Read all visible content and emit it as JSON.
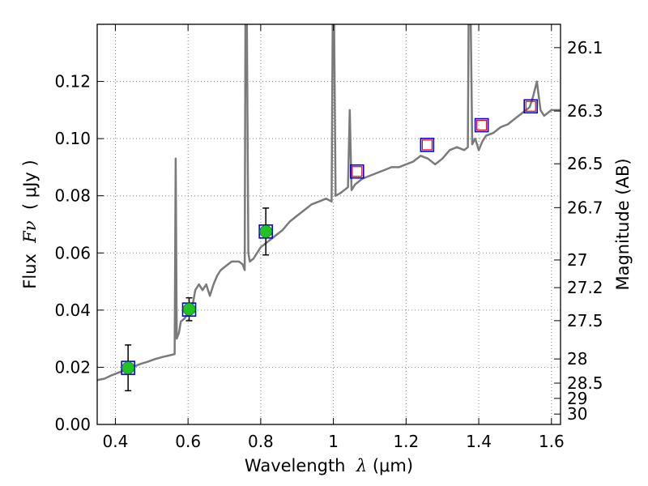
{
  "chart_data": {
    "type": "line",
    "title": "",
    "xlabel": {
      "prefix": "Wavelength  ",
      "symbol": "λ",
      "units": " (μm)"
    },
    "ylabel": {
      "prefix": "Flux  ",
      "symbol": "Fν",
      "units": "  ( μJy )"
    },
    "ylabel_right": "Magnitude (AB)",
    "xlim": [
      0.35,
      1.625
    ],
    "ylim": [
      0.0,
      0.14
    ],
    "grid": true,
    "grid_style": "dotted",
    "x_ticks": [
      {
        "v": 0.4,
        "label": "0.4"
      },
      {
        "v": 0.6,
        "label": "0.6"
      },
      {
        "v": 0.8,
        "label": "0.8"
      },
      {
        "v": 1.0,
        "label": "1"
      },
      {
        "v": 1.2,
        "label": "1.2"
      },
      {
        "v": 1.4,
        "label": "1.4"
      },
      {
        "v": 1.6,
        "label": "1.6"
      }
    ],
    "y_ticks": [
      {
        "v": 0.0,
        "label": "0.00"
      },
      {
        "v": 0.02,
        "label": "0.02"
      },
      {
        "v": 0.04,
        "label": "0.04"
      },
      {
        "v": 0.06,
        "label": "0.06"
      },
      {
        "v": 0.08,
        "label": "0.08"
      },
      {
        "v": 0.1,
        "label": "0.10"
      },
      {
        "v": 0.12,
        "label": "0.12"
      }
    ],
    "right_ticks": [
      {
        "mag": 26.1,
        "label": "26.1"
      },
      {
        "mag": 26.3,
        "label": "26.3"
      },
      {
        "mag": 26.5,
        "label": "26.5"
      },
      {
        "mag": 26.7,
        "label": "26.7"
      },
      {
        "mag": 27.0,
        "label": "27"
      },
      {
        "mag": 27.2,
        "label": "27.2"
      },
      {
        "mag": 27.5,
        "label": "27.5"
      },
      {
        "mag": 28.0,
        "label": "28"
      },
      {
        "mag": 28.5,
        "label": "28.5"
      },
      {
        "mag": 29.0,
        "label": "29"
      },
      {
        "mag": 30.0,
        "label": "30"
      }
    ],
    "colors": {
      "spectrum": "#7a7a7a",
      "model_square": "#0000ee",
      "upper_square": "#ee0000",
      "detection": "#22c222",
      "errorbar": "#000000",
      "grid": "#888888"
    },
    "series": [
      {
        "kind": "spectrum",
        "points": [
          [
            0.35,
            0.0155
          ],
          [
            0.37,
            0.016
          ],
          [
            0.39,
            0.0172
          ],
          [
            0.41,
            0.0182
          ],
          [
            0.43,
            0.0192
          ],
          [
            0.45,
            0.0202
          ],
          [
            0.47,
            0.0212
          ],
          [
            0.49,
            0.022
          ],
          [
            0.51,
            0.0229
          ],
          [
            0.53,
            0.0236
          ],
          [
            0.55,
            0.0242
          ],
          [
            0.563,
            0.0246
          ],
          [
            0.566,
            0.093
          ],
          [
            0.569,
            0.03
          ],
          [
            0.575,
            0.032
          ],
          [
            0.58,
            0.036
          ],
          [
            0.59,
            0.037
          ],
          [
            0.6,
            0.039
          ],
          [
            0.61,
            0.04
          ],
          [
            0.62,
            0.047
          ],
          [
            0.63,
            0.049
          ],
          [
            0.64,
            0.047
          ],
          [
            0.65,
            0.049
          ],
          [
            0.66,
            0.045
          ],
          [
            0.67,
            0.049
          ],
          [
            0.68,
            0.052
          ],
          [
            0.69,
            0.054
          ],
          [
            0.7,
            0.055
          ],
          [
            0.72,
            0.057
          ],
          [
            0.74,
            0.057
          ],
          [
            0.75,
            0.056
          ],
          [
            0.756,
            0.054
          ],
          [
            0.758,
            0.14
          ],
          [
            0.762,
            0.14
          ],
          [
            0.766,
            0.06
          ],
          [
            0.77,
            0.057
          ],
          [
            0.78,
            0.058
          ],
          [
            0.79,
            0.06
          ],
          [
            0.8,
            0.062
          ],
          [
            0.82,
            0.064
          ],
          [
            0.84,
            0.066
          ],
          [
            0.86,
            0.068
          ],
          [
            0.88,
            0.071
          ],
          [
            0.9,
            0.073
          ],
          [
            0.92,
            0.075
          ],
          [
            0.94,
            0.077
          ],
          [
            0.96,
            0.078
          ],
          [
            0.98,
            0.079
          ],
          [
            0.995,
            0.078
          ],
          [
            0.998,
            0.14
          ],
          [
            1.002,
            0.14
          ],
          [
            1.006,
            0.08
          ],
          [
            1.02,
            0.081
          ],
          [
            1.03,
            0.082
          ],
          [
            1.04,
            0.083
          ],
          [
            1.045,
            0.11
          ],
          [
            1.05,
            0.082
          ],
          [
            1.06,
            0.084
          ],
          [
            1.08,
            0.086
          ],
          [
            1.1,
            0.087
          ],
          [
            1.12,
            0.088
          ],
          [
            1.14,
            0.089
          ],
          [
            1.16,
            0.09
          ],
          [
            1.18,
            0.09
          ],
          [
            1.2,
            0.091
          ],
          [
            1.22,
            0.092
          ],
          [
            1.24,
            0.094
          ],
          [
            1.26,
            0.093
          ],
          [
            1.28,
            0.091
          ],
          [
            1.3,
            0.093
          ],
          [
            1.32,
            0.096
          ],
          [
            1.34,
            0.097
          ],
          [
            1.36,
            0.096
          ],
          [
            1.37,
            0.097
          ],
          [
            1.372,
            0.14
          ],
          [
            1.378,
            0.14
          ],
          [
            1.382,
            0.098
          ],
          [
            1.39,
            0.1
          ],
          [
            1.4,
            0.096
          ],
          [
            1.41,
            0.099
          ],
          [
            1.42,
            0.101
          ],
          [
            1.44,
            0.102
          ],
          [
            1.46,
            0.104
          ],
          [
            1.48,
            0.105
          ],
          [
            1.5,
            0.107
          ],
          [
            1.52,
            0.109
          ],
          [
            1.54,
            0.111
          ],
          [
            1.55,
            0.115
          ],
          [
            1.56,
            0.12
          ],
          [
            1.57,
            0.11
          ],
          [
            1.58,
            0.108
          ],
          [
            1.6,
            0.11
          ],
          [
            1.625,
            0.11
          ]
        ]
      },
      {
        "kind": "model_photometry",
        "points": [
          {
            "x": 0.435,
            "y": 0.0198
          },
          {
            "x": 0.603,
            "y": 0.0402
          },
          {
            "x": 0.814,
            "y": 0.0675
          },
          {
            "x": 1.065,
            "y": 0.0885
          },
          {
            "x": 1.258,
            "y": 0.0978
          },
          {
            "x": 1.408,
            "y": 0.1047
          },
          {
            "x": 1.543,
            "y": 0.1113
          }
        ]
      },
      {
        "kind": "detections",
        "points": [
          {
            "x": 0.435,
            "y": 0.0198,
            "err": 0.008
          },
          {
            "x": 0.603,
            "y": 0.0403,
            "err": 0.004
          },
          {
            "x": 0.814,
            "y": 0.0675,
            "err": 0.0082
          }
        ]
      },
      {
        "kind": "upper_points",
        "points": [
          {
            "x": 1.065,
            "y": 0.0885
          },
          {
            "x": 1.258,
            "y": 0.0978
          },
          {
            "x": 1.408,
            "y": 0.1047
          },
          {
            "x": 1.543,
            "y": 0.1113
          }
        ]
      }
    ]
  }
}
